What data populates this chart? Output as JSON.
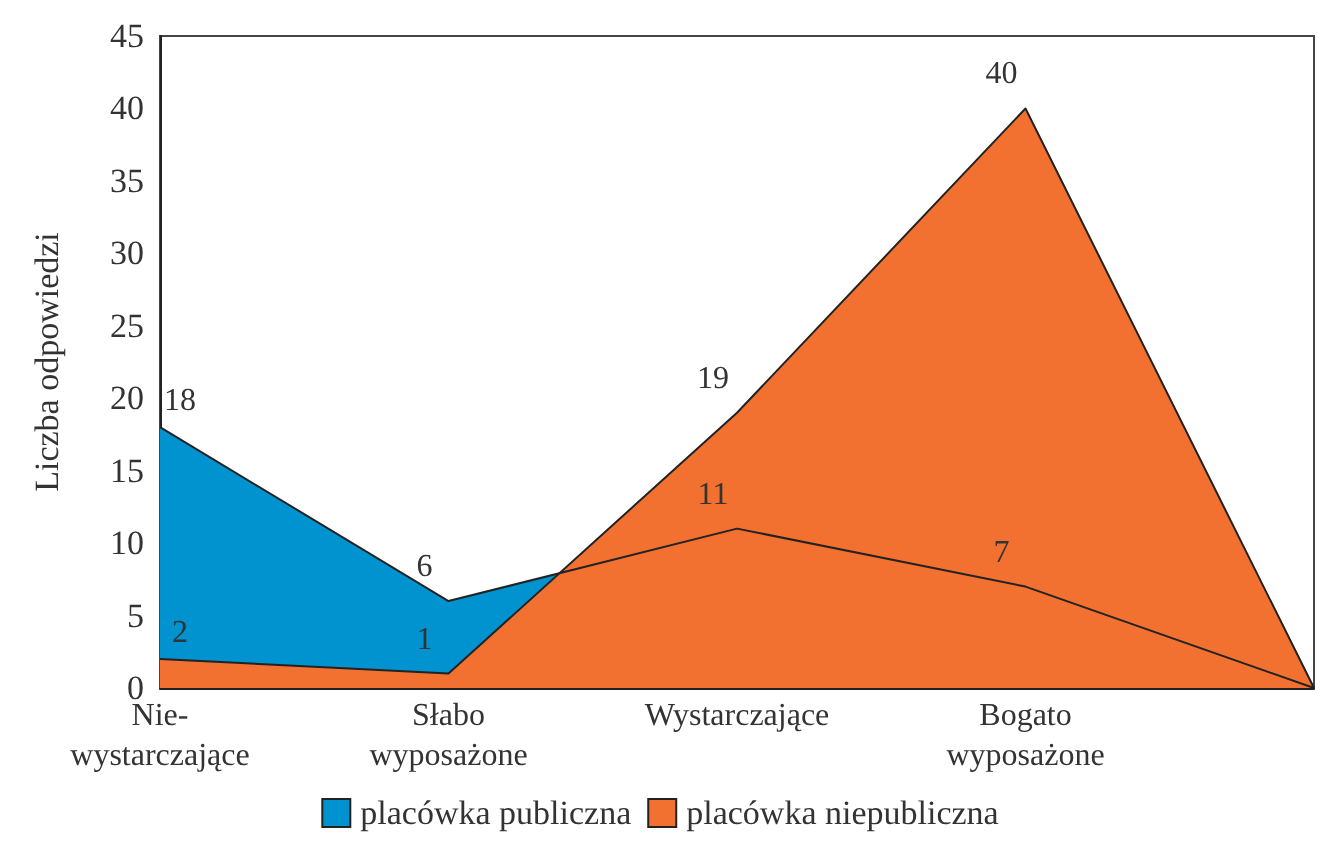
{
  "chart_data": {
    "type": "area",
    "ylabel": "Liczba odpowiedzi",
    "categories": [
      "Nie-\nwystarczające",
      "Słabo\nwyposażone",
      "Wystarczające",
      "Bogato\nwyposażone",
      null
    ],
    "series": [
      {
        "name": "placówka publiczna",
        "color": "#0093d0",
        "values": [
          18,
          6,
          11,
          7,
          0
        ],
        "value_labels": [
          "18",
          "6",
          "11",
          "7",
          null
        ]
      },
      {
        "name": "placówka niepubliczna",
        "color": "#f27130",
        "values": [
          2,
          1,
          19,
          40,
          0
        ],
        "value_labels": [
          "2",
          "1",
          "19",
          "40",
          null
        ]
      }
    ],
    "ylim": [
      0,
      45
    ],
    "yticks": [
      0,
      5,
      10,
      15,
      20,
      25,
      30,
      35,
      40,
      45
    ],
    "grid": false,
    "legend": "bottom"
  }
}
